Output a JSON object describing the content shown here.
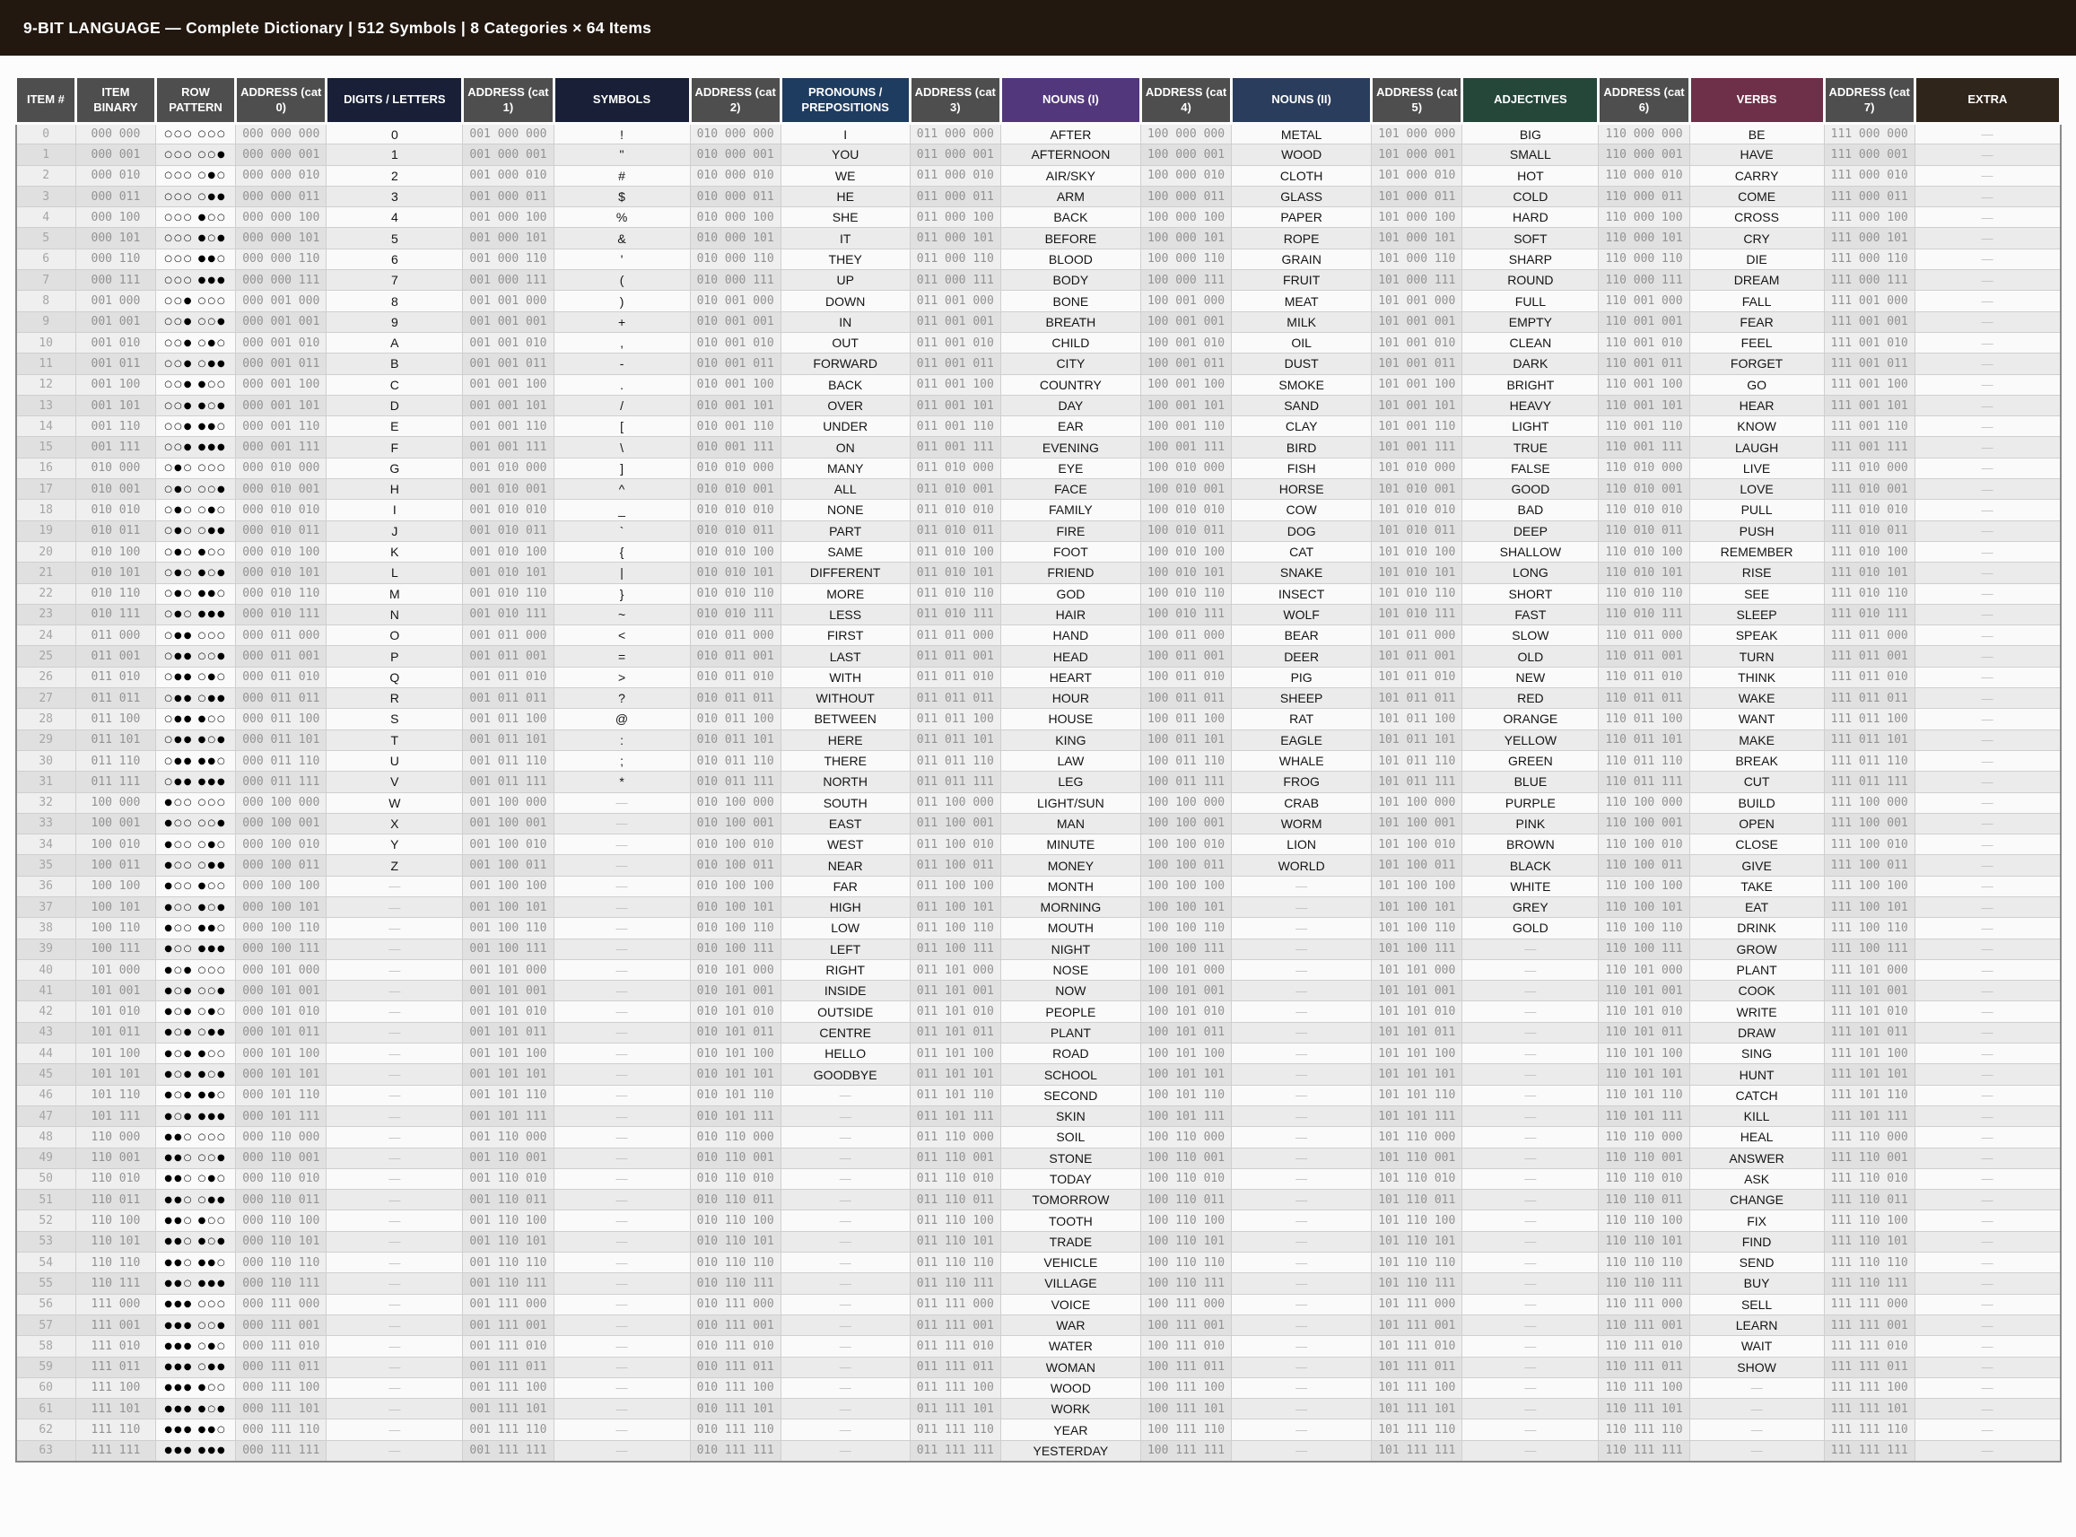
{
  "page": {
    "title": "9-BIT LANGUAGE — Complete Dictionary | 512 Symbols | 8 Categories × 64 Items"
  },
  "colors": {
    "title_bar_bg": "#221810",
    "title_text": "#ffffff",
    "header_gray": "#4e4e4e",
    "header_navy_dark": "#181f36",
    "header_navy": "#1e3c60",
    "header_purple": "#53377d",
    "header_steel": "#2b3d5c",
    "header_green": "#24473a",
    "header_maroon": "#6e3048",
    "header_brown": "#30251a",
    "row_even_bg": "#fafafa",
    "row_odd_bg": "#ebebeb",
    "grid_line": "#cfcfcf",
    "mono_text": "#929292",
    "word_text": "#141414",
    "dash_text": "#c2c2c2"
  },
  "table": {
    "item_count": 64,
    "empty_marker": "—",
    "pattern_glyphs": {
      "one": "●",
      "zero": "○"
    },
    "columns": [
      {
        "id": "item_index",
        "label": "ITEM #",
        "kind": "index",
        "bg": "header_gray",
        "width": 66
      },
      {
        "id": "item_binary",
        "label": "ITEM BINARY",
        "kind": "binary",
        "bg": "header_gray",
        "width": 88
      },
      {
        "id": "row_pattern",
        "label": "ROW PATTERN",
        "kind": "pattern",
        "bg": "header_gray",
        "width": 88
      },
      {
        "id": "address_cat0",
        "label": "ADDRESS (cat 0)",
        "kind": "address",
        "prefix": "000",
        "bg": "header_gray",
        "width": 100
      },
      {
        "id": "digits_letters",
        "label": "DIGITS / LETTERS",
        "kind": "words",
        "list": "digits_letters",
        "bg": "header_navy_dark",
        "width": 150
      },
      {
        "id": "address_cat1",
        "label": "ADDRESS (cat 1)",
        "kind": "address",
        "prefix": "001",
        "bg": "header_gray",
        "width": 100
      },
      {
        "id": "symbols",
        "label": "SYMBOLS",
        "kind": "words",
        "list": "symbols",
        "bg": "header_navy_dark",
        "width": 150
      },
      {
        "id": "address_cat2",
        "label": "ADDRESS (cat 2)",
        "kind": "address",
        "prefix": "010",
        "bg": "header_gray",
        "width": 100
      },
      {
        "id": "pronouns_prepositions",
        "label": "PRONOUNS / PREPOSITIONS",
        "kind": "words",
        "list": "pronouns_prepositions",
        "bg": "header_navy",
        "width": 142
      },
      {
        "id": "address_cat3",
        "label": "ADDRESS (cat 3)",
        "kind": "address",
        "prefix": "011",
        "bg": "header_gray",
        "width": 100
      },
      {
        "id": "nouns_1",
        "label": "NOUNS (I)",
        "kind": "words",
        "list": "nouns_1",
        "bg": "header_purple",
        "width": 154
      },
      {
        "id": "address_cat4",
        "label": "ADDRESS (cat 4)",
        "kind": "address",
        "prefix": "100",
        "bg": "header_gray",
        "width": 100
      },
      {
        "id": "nouns_2",
        "label": "NOUNS (II)",
        "kind": "words",
        "list": "nouns_2",
        "bg": "header_steel",
        "width": 154
      },
      {
        "id": "address_cat5",
        "label": "ADDRESS (cat 5)",
        "kind": "address",
        "prefix": "101",
        "bg": "header_gray",
        "width": 100
      },
      {
        "id": "adjectives",
        "label": "ADJECTIVES",
        "kind": "words",
        "list": "adjectives",
        "bg": "header_green",
        "width": 150
      },
      {
        "id": "address_cat6",
        "label": "ADDRESS (cat 6)",
        "kind": "address",
        "prefix": "110",
        "bg": "header_gray",
        "width": 100
      },
      {
        "id": "verbs",
        "label": "VERBS",
        "kind": "words",
        "list": "verbs",
        "bg": "header_maroon",
        "width": 148
      },
      {
        "id": "address_cat7",
        "label": "ADDRESS (cat 7)",
        "kind": "address",
        "prefix": "111",
        "bg": "header_gray",
        "width": 100
      },
      {
        "id": "extra",
        "label": "EXTRA",
        "kind": "words",
        "list": "extra",
        "bg": "header_brown",
        "width": 160
      }
    ],
    "word_lists": {
      "digits_letters": [
        "0",
        "1",
        "2",
        "3",
        "4",
        "5",
        "6",
        "7",
        "8",
        "9",
        "A",
        "B",
        "C",
        "D",
        "E",
        "F",
        "G",
        "H",
        "I",
        "J",
        "K",
        "L",
        "M",
        "N",
        "O",
        "P",
        "Q",
        "R",
        "S",
        "T",
        "U",
        "V",
        "W",
        "X",
        "Y",
        "Z"
      ],
      "symbols": [
        "!",
        "\"",
        "#",
        "$",
        "%",
        "&",
        "'",
        "(",
        ")",
        "+",
        ",",
        "-",
        ".",
        "/",
        "[",
        "\\",
        "]",
        "^",
        "_",
        "`",
        "{",
        "|",
        "}",
        "~",
        "<",
        "=",
        ">",
        "?",
        "@",
        ":",
        ";",
        "*"
      ],
      "pronouns_prepositions": [
        "I",
        "YOU",
        "WE",
        "HE",
        "SHE",
        "IT",
        "THEY",
        "UP",
        "DOWN",
        "IN",
        "OUT",
        "FORWARD",
        "BACK",
        "OVER",
        "UNDER",
        "ON",
        "MANY",
        "ALL",
        "NONE",
        "PART",
        "SAME",
        "DIFFERENT",
        "MORE",
        "LESS",
        "FIRST",
        "LAST",
        "WITH",
        "WITHOUT",
        "BETWEEN",
        "HERE",
        "THERE",
        "NORTH",
        "SOUTH",
        "EAST",
        "WEST",
        "NEAR",
        "FAR",
        "HIGH",
        "LOW",
        "LEFT",
        "RIGHT",
        "INSIDE",
        "OUTSIDE",
        "CENTRE",
        "HELLO",
        "GOODBYE"
      ],
      "nouns_1": [
        "AFTER",
        "AFTERNOON",
        "AIR/SKY",
        "ARM",
        "BACK",
        "BEFORE",
        "BLOOD",
        "BODY",
        "BONE",
        "BREATH",
        "CHILD",
        "CITY",
        "COUNTRY",
        "DAY",
        "EAR",
        "EVENING",
        "EYE",
        "FACE",
        "FAMILY",
        "FIRE",
        "FOOT",
        "FRIEND",
        "GOD",
        "HAIR",
        "HAND",
        "HEAD",
        "HEART",
        "HOUR",
        "HOUSE",
        "KING",
        "LAW",
        "LEG",
        "LIGHT/SUN",
        "MAN",
        "MINUTE",
        "MONEY",
        "MONTH",
        "MORNING",
        "MOUTH",
        "NIGHT",
        "NOSE",
        "NOW",
        "PEOPLE",
        "PLANT",
        "ROAD",
        "SCHOOL",
        "SECOND",
        "SKIN",
        "SOIL",
        "STONE",
        "TODAY",
        "TOMORROW",
        "TOOTH",
        "TRADE",
        "VEHICLE",
        "VILLAGE",
        "VOICE",
        "WAR",
        "WATER",
        "WOMAN",
        "WOOD",
        "WORK",
        "YEAR",
        "YESTERDAY"
      ],
      "nouns_2": [
        "METAL",
        "WOOD",
        "CLOTH",
        "GLASS",
        "PAPER",
        "ROPE",
        "GRAIN",
        "FRUIT",
        "MEAT",
        "MILK",
        "OIL",
        "DUST",
        "SMOKE",
        "SAND",
        "CLAY",
        "BIRD",
        "FISH",
        "HORSE",
        "COW",
        "DOG",
        "CAT",
        "SNAKE",
        "INSECT",
        "WOLF",
        "BEAR",
        "DEER",
        "PIG",
        "SHEEP",
        "RAT",
        "EAGLE",
        "WHALE",
        "FROG",
        "CRAB",
        "WORM",
        "LION",
        "WORLD"
      ],
      "adjectives": [
        "BIG",
        "SMALL",
        "HOT",
        "COLD",
        "HARD",
        "SOFT",
        "SHARP",
        "ROUND",
        "FULL",
        "EMPTY",
        "CLEAN",
        "DARK",
        "BRIGHT",
        "HEAVY",
        "LIGHT",
        "TRUE",
        "FALSE",
        "GOOD",
        "BAD",
        "DEEP",
        "SHALLOW",
        "LONG",
        "SHORT",
        "FAST",
        "SLOW",
        "OLD",
        "NEW",
        "RED",
        "ORANGE",
        "YELLOW",
        "GREEN",
        "BLUE",
        "PURPLE",
        "PINK",
        "BROWN",
        "BLACK",
        "WHITE",
        "GREY",
        "GOLD"
      ],
      "verbs": [
        "BE",
        "HAVE",
        "CARRY",
        "COME",
        "CROSS",
        "CRY",
        "DIE",
        "DREAM",
        "FALL",
        "FEAR",
        "FEEL",
        "FORGET",
        "GO",
        "HEAR",
        "KNOW",
        "LAUGH",
        "LIVE",
        "LOVE",
        "PULL",
        "PUSH",
        "REMEMBER",
        "RISE",
        "SEE",
        "SLEEP",
        "SPEAK",
        "TURN",
        "THINK",
        "WAKE",
        "WANT",
        "MAKE",
        "BREAK",
        "CUT",
        "BUILD",
        "OPEN",
        "CLOSE",
        "GIVE",
        "TAKE",
        "EAT",
        "DRINK",
        "GROW",
        "PLANT",
        "COOK",
        "WRITE",
        "DRAW",
        "SING",
        "HUNT",
        "CATCH",
        "KILL",
        "HEAL",
        "ANSWER",
        "ASK",
        "CHANGE",
        "FIX",
        "FIND",
        "SEND",
        "BUY",
        "SELL",
        "LEARN",
        "WAIT",
        "SHOW"
      ],
      "extra": []
    }
  }
}
